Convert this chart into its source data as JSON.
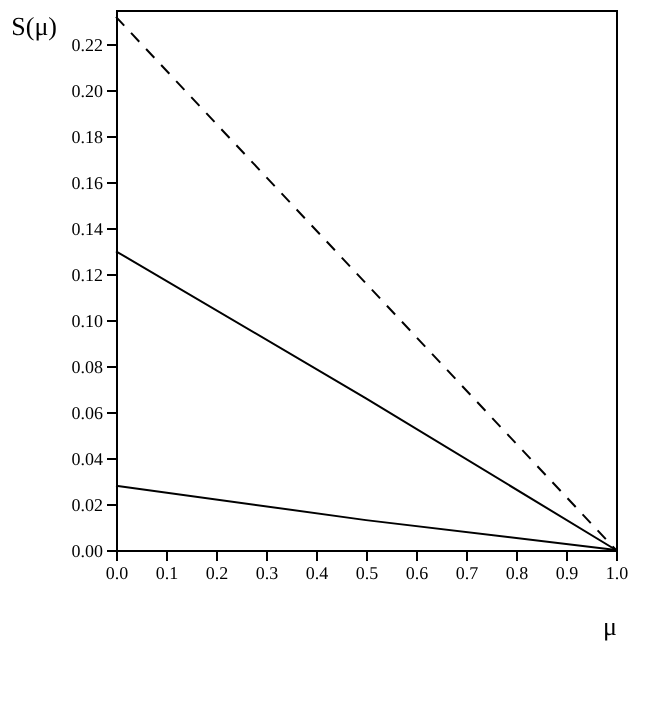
{
  "chart_data": {
    "type": "line",
    "xlabel": "μ",
    "ylabel": "S(μ)",
    "x": [
      0,
      0.5,
      1
    ],
    "series": [
      {
        "color": "#000000",
        "line_style": "dashed",
        "values": [
          0.232,
          0.116,
          0
        ]
      },
      {
        "color": "#000000",
        "line_style": "solid",
        "values": [
          0.13,
          0.066,
          0
        ]
      },
      {
        "color": "#000000",
        "line_style": "solid",
        "values": [
          0.028,
          0.013,
          0
        ]
      }
    ],
    "xlim": [
      0,
      1
    ],
    "xticks": [
      {
        "value": 0,
        "label": "0.0"
      },
      0.1,
      0.2,
      0.3,
      0.4,
      0.5,
      0.6,
      0.7,
      0.8,
      0.9,
      {
        "value": 1,
        "label": "1.0"
      }
    ],
    "ylim": [
      0,
      0.235
    ],
    "yticks": [
      {
        "value": 0,
        "label": "0.00"
      },
      {
        "value": 0.02,
        "label": "0.02"
      },
      {
        "value": 0.04,
        "label": "0.04"
      },
      {
        "value": 0.06,
        "label": "0.06"
      },
      {
        "value": 0.08,
        "label": "0.08"
      },
      {
        "value": 0.1,
        "label": "0.10"
      },
      {
        "value": 0.12,
        "label": "0.12"
      },
      {
        "value": 0.14,
        "label": "0.14"
      },
      {
        "value": 0.16,
        "label": "0.16"
      },
      {
        "value": 0.18,
        "label": "0.18"
      },
      {
        "value": 0.2,
        "label": "0.20"
      },
      {
        "value": 0.22,
        "label": "0.22"
      }
    ],
    "grid": false,
    "marker": "none"
  }
}
